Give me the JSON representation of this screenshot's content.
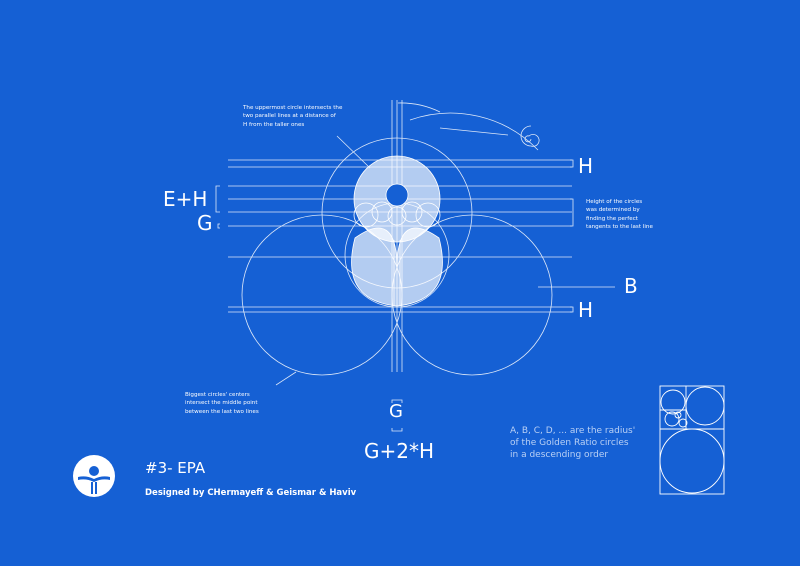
{
  "notes": {
    "top": [
      "The uppermost circle intersects the",
      "two parallel lines at a distance of",
      "H from the taller ones"
    ],
    "right": [
      "Height of the circles",
      "was determined by",
      "finding the perfect",
      "tangents to the last line"
    ],
    "left": [
      "Biggest circles' centers",
      "intersect the middle point",
      "between the last two lines"
    ]
  },
  "labels": {
    "eh": "E+H",
    "g_left": "G",
    "h_top": "H",
    "b": "B",
    "h_bottom": "H",
    "g_bottom": "G",
    "g2h": "G+2*H"
  },
  "ratio_note": [
    "A, B, C, D, ... are the radius'",
    "of the Golden Ratio circles",
    "in a descending order"
  ],
  "title": "#3- EPA",
  "credit": "Designed by CHermayeff & Geismar & Haviv",
  "colors": {
    "background": "#1560d4",
    "line": "#ffffff",
    "fill": "#ffffff"
  }
}
